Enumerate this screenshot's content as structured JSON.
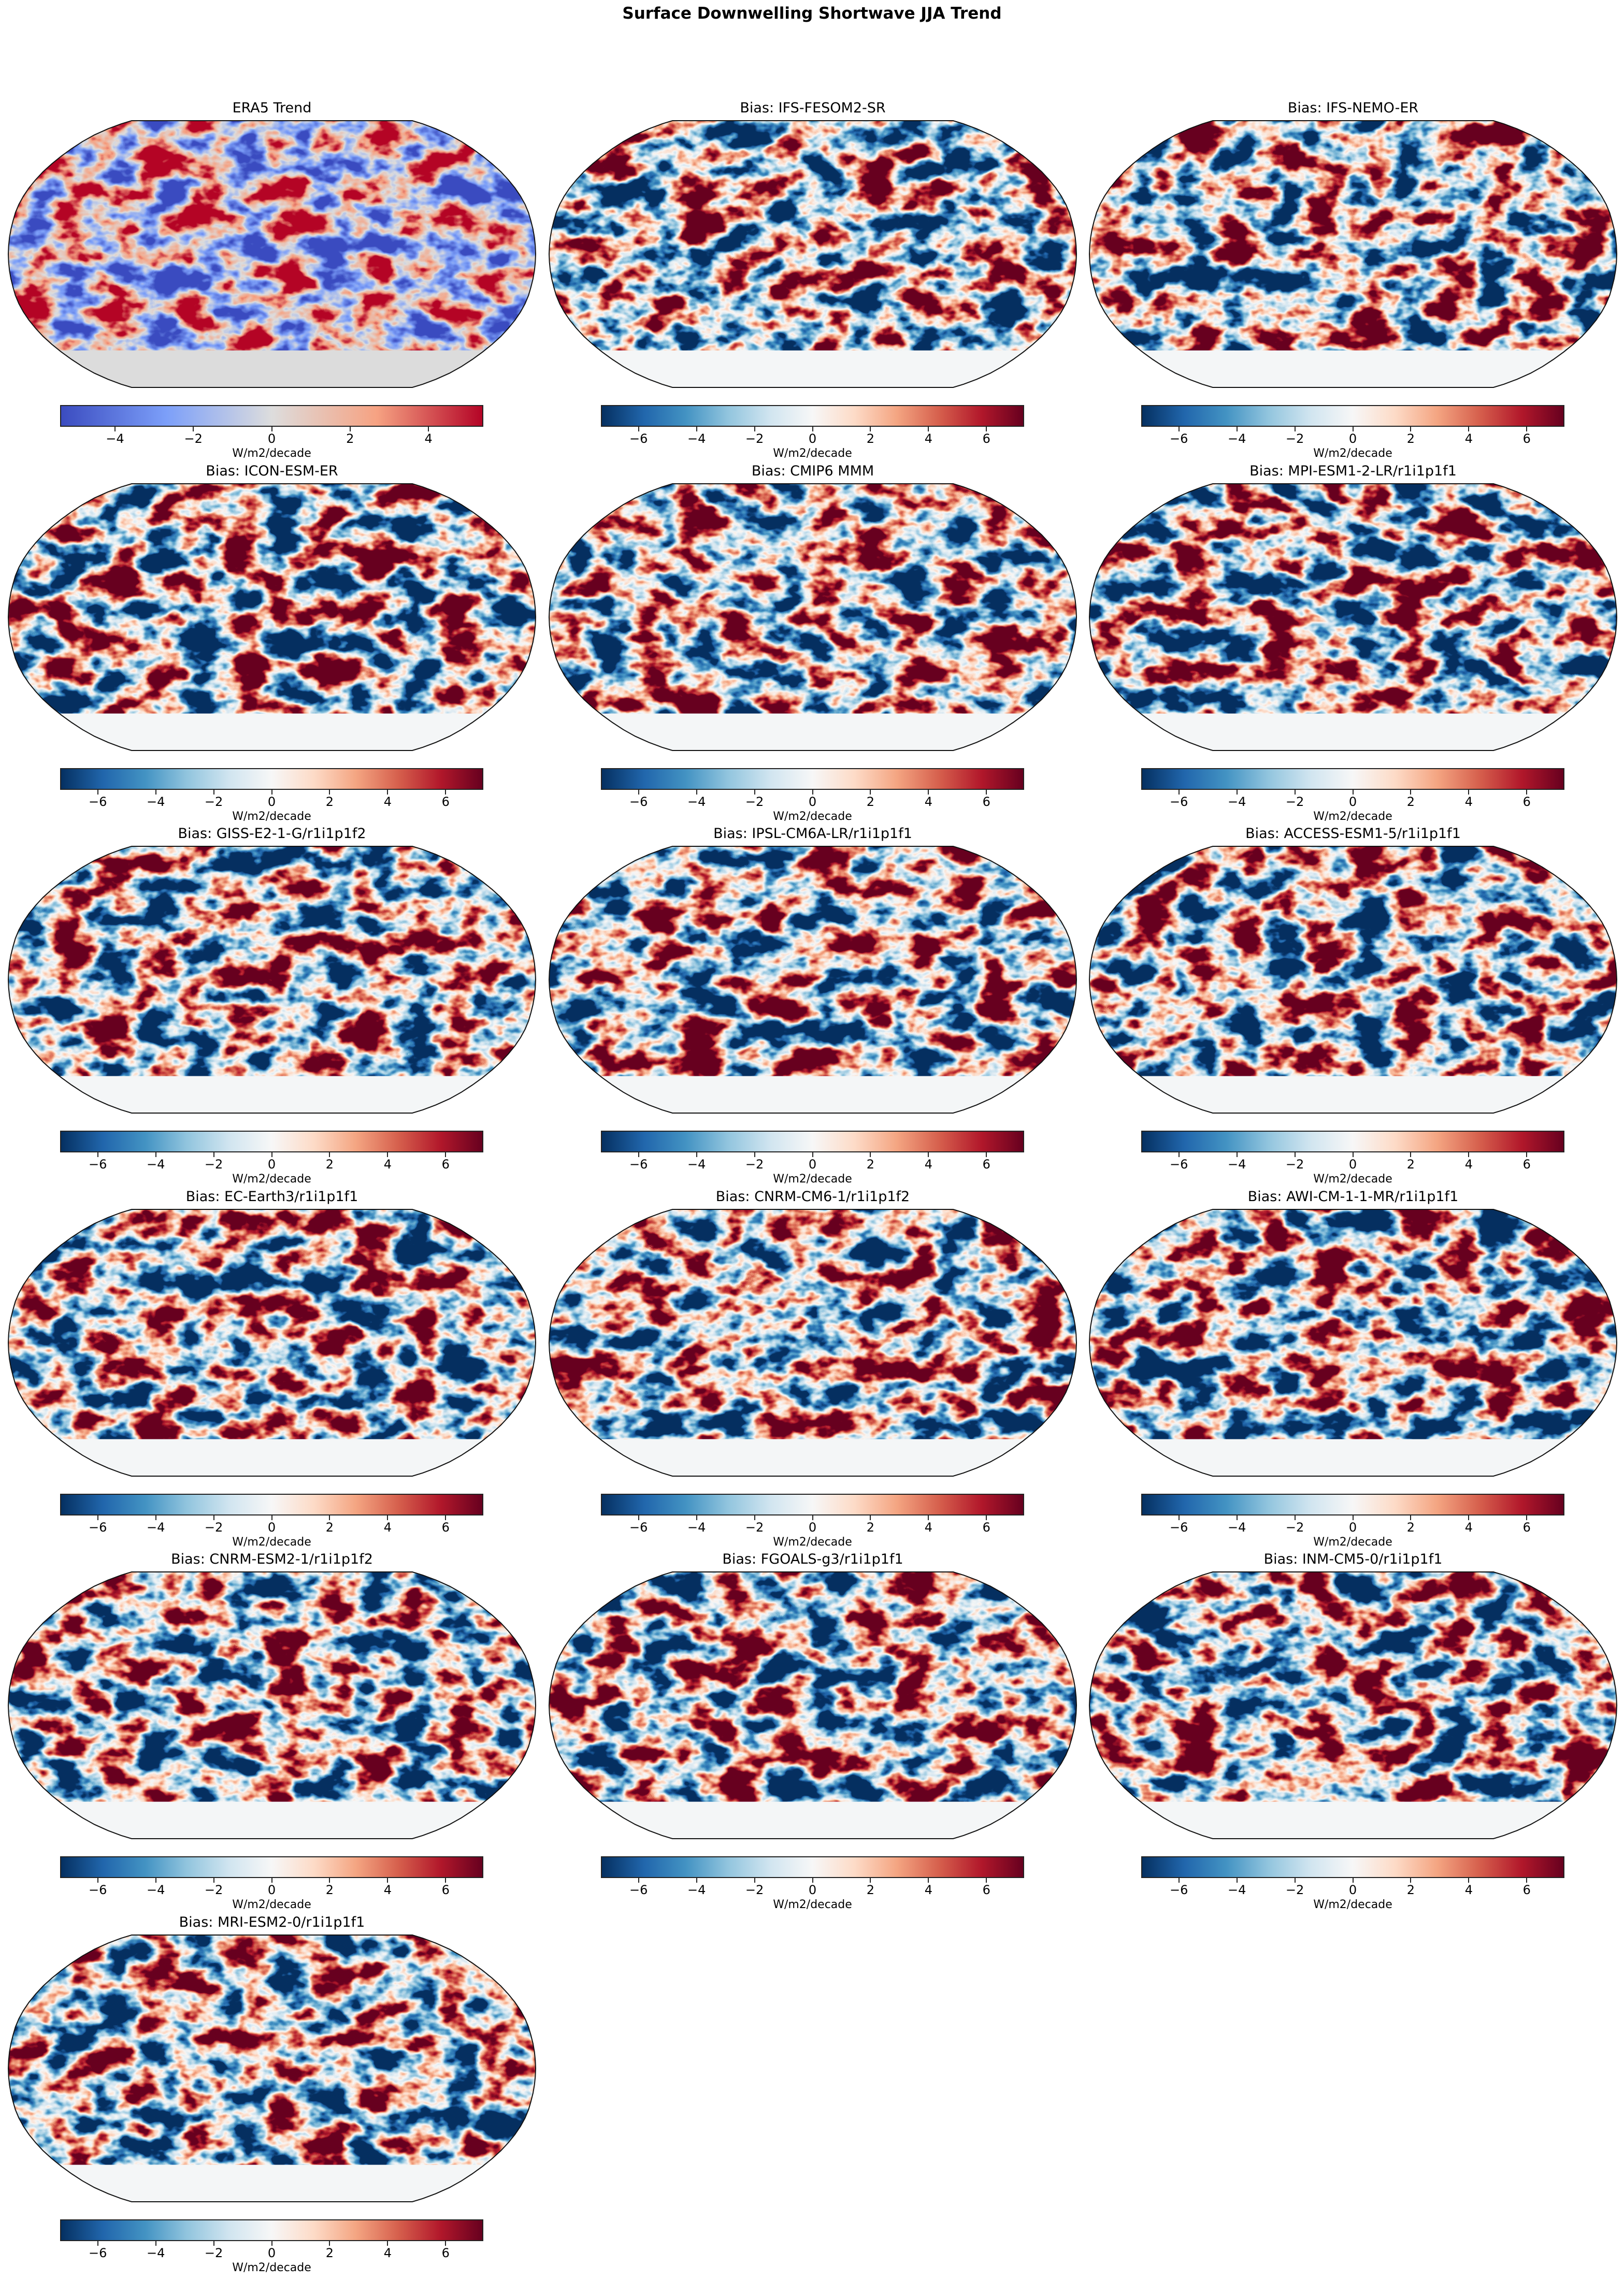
{
  "figure_title": "Surface Downwelling Shortwave JJA Trend",
  "colors": {
    "coolwarm": [
      "#3b4cc0",
      "#7c9ff9",
      "#dddddd",
      "#f6a282",
      "#b40426"
    ],
    "RdBu_r": [
      "#053061",
      "#2166ac",
      "#4393c3",
      "#92c5de",
      "#d1e5f0",
      "#f7f7f7",
      "#fddbc7",
      "#f4a582",
      "#d6604d",
      "#b2182b",
      "#67001f"
    ]
  },
  "chart_data": [
    {
      "type": "heatmap",
      "title": "ERA5 Trend",
      "cmap": "coolwarm",
      "vmin": -5.4,
      "vmax": 5.4,
      "ticks": [
        "−4",
        "−2",
        "0",
        "2",
        "4"
      ],
      "tick_values": [
        -4,
        -2,
        0,
        2,
        4
      ],
      "colorbar_label": "W/m2/decade"
    },
    {
      "type": "heatmap",
      "title": "Bias: IFS-FESOM2-SR",
      "cmap": "RdBu_r",
      "vmin": -7.3,
      "vmax": 7.3,
      "ticks": [
        "−6",
        "−4",
        "−2",
        "0",
        "2",
        "4",
        "6"
      ],
      "tick_values": [
        -6,
        -4,
        -2,
        0,
        2,
        4,
        6
      ],
      "colorbar_label": "W/m2/decade"
    },
    {
      "type": "heatmap",
      "title": "Bias: IFS-NEMO-ER",
      "cmap": "RdBu_r",
      "vmin": -7.3,
      "vmax": 7.3,
      "ticks": [
        "−6",
        "−4",
        "−2",
        "0",
        "2",
        "4",
        "6"
      ],
      "tick_values": [
        -6,
        -4,
        -2,
        0,
        2,
        4,
        6
      ],
      "colorbar_label": "W/m2/decade"
    },
    {
      "type": "heatmap",
      "title": "Bias: ICON-ESM-ER",
      "cmap": "RdBu_r",
      "vmin": -7.3,
      "vmax": 7.3,
      "ticks": [
        "−6",
        "−4",
        "−2",
        "0",
        "2",
        "4",
        "6"
      ],
      "tick_values": [
        -6,
        -4,
        -2,
        0,
        2,
        4,
        6
      ],
      "colorbar_label": "W/m2/decade"
    },
    {
      "type": "heatmap",
      "title": "Bias: CMIP6 MMM",
      "cmap": "RdBu_r",
      "vmin": -7.3,
      "vmax": 7.3,
      "ticks": [
        "−6",
        "−4",
        "−2",
        "0",
        "2",
        "4",
        "6"
      ],
      "tick_values": [
        -6,
        -4,
        -2,
        0,
        2,
        4,
        6
      ],
      "colorbar_label": "W/m2/decade"
    },
    {
      "type": "heatmap",
      "title": "Bias: MPI-ESM1-2-LR/r1i1p1f1",
      "cmap": "RdBu_r",
      "vmin": -7.3,
      "vmax": 7.3,
      "ticks": [
        "−6",
        "−4",
        "−2",
        "0",
        "2",
        "4",
        "6"
      ],
      "tick_values": [
        -6,
        -4,
        -2,
        0,
        2,
        4,
        6
      ],
      "colorbar_label": "W/m2/decade"
    },
    {
      "type": "heatmap",
      "title": "Bias: GISS-E2-1-G/r1i1p1f2",
      "cmap": "RdBu_r",
      "vmin": -7.3,
      "vmax": 7.3,
      "ticks": [
        "−6",
        "−4",
        "−2",
        "0",
        "2",
        "4",
        "6"
      ],
      "tick_values": [
        -6,
        -4,
        -2,
        0,
        2,
        4,
        6
      ],
      "colorbar_label": "W/m2/decade"
    },
    {
      "type": "heatmap",
      "title": "Bias: IPSL-CM6A-LR/r1i1p1f1",
      "cmap": "RdBu_r",
      "vmin": -7.3,
      "vmax": 7.3,
      "ticks": [
        "−6",
        "−4",
        "−2",
        "0",
        "2",
        "4",
        "6"
      ],
      "tick_values": [
        -6,
        -4,
        -2,
        0,
        2,
        4,
        6
      ],
      "colorbar_label": "W/m2/decade"
    },
    {
      "type": "heatmap",
      "title": "Bias: ACCESS-ESM1-5/r1i1p1f1",
      "cmap": "RdBu_r",
      "vmin": -7.3,
      "vmax": 7.3,
      "ticks": [
        "−6",
        "−4",
        "−2",
        "0",
        "2",
        "4",
        "6"
      ],
      "tick_values": [
        -6,
        -4,
        -2,
        0,
        2,
        4,
        6
      ],
      "colorbar_label": "W/m2/decade"
    },
    {
      "type": "heatmap",
      "title": "Bias: EC-Earth3/r1i1p1f1",
      "cmap": "RdBu_r",
      "vmin": -7.3,
      "vmax": 7.3,
      "ticks": [
        "−6",
        "−4",
        "−2",
        "0",
        "2",
        "4",
        "6"
      ],
      "tick_values": [
        -6,
        -4,
        -2,
        0,
        2,
        4,
        6
      ],
      "colorbar_label": "W/m2/decade"
    },
    {
      "type": "heatmap",
      "title": "Bias: CNRM-CM6-1/r1i1p1f2",
      "cmap": "RdBu_r",
      "vmin": -7.3,
      "vmax": 7.3,
      "ticks": [
        "−6",
        "−4",
        "−2",
        "0",
        "2",
        "4",
        "6"
      ],
      "tick_values": [
        -6,
        -4,
        -2,
        0,
        2,
        4,
        6
      ],
      "colorbar_label": "W/m2/decade"
    },
    {
      "type": "heatmap",
      "title": "Bias: AWI-CM-1-1-MR/r1i1p1f1",
      "cmap": "RdBu_r",
      "vmin": -7.3,
      "vmax": 7.3,
      "ticks": [
        "−6",
        "−4",
        "−2",
        "0",
        "2",
        "4",
        "6"
      ],
      "tick_values": [
        -6,
        -4,
        -2,
        0,
        2,
        4,
        6
      ],
      "colorbar_label": "W/m2/decade"
    },
    {
      "type": "heatmap",
      "title": "Bias: CNRM-ESM2-1/r1i1p1f2",
      "cmap": "RdBu_r",
      "vmin": -7.3,
      "vmax": 7.3,
      "ticks": [
        "−6",
        "−4",
        "−2",
        "0",
        "2",
        "4",
        "6"
      ],
      "tick_values": [
        -6,
        -4,
        -2,
        0,
        2,
        4,
        6
      ],
      "colorbar_label": "W/m2/decade"
    },
    {
      "type": "heatmap",
      "title": "Bias: FGOALS-g3/r1i1p1f1",
      "cmap": "RdBu_r",
      "vmin": -7.3,
      "vmax": 7.3,
      "ticks": [
        "−6",
        "−4",
        "−2",
        "0",
        "2",
        "4",
        "6"
      ],
      "tick_values": [
        -6,
        -4,
        -2,
        0,
        2,
        4,
        6
      ],
      "colorbar_label": "W/m2/decade"
    },
    {
      "type": "heatmap",
      "title": "Bias: INM-CM5-0/r1i1p1f1",
      "cmap": "RdBu_r",
      "vmin": -7.3,
      "vmax": 7.3,
      "ticks": [
        "−6",
        "−4",
        "−2",
        "0",
        "2",
        "4",
        "6"
      ],
      "tick_values": [
        -6,
        -4,
        -2,
        0,
        2,
        4,
        6
      ],
      "colorbar_label": "W/m2/decade"
    },
    {
      "type": "heatmap",
      "title": "Bias: MRI-ESM2-0/r1i1p1f1",
      "cmap": "RdBu_r",
      "vmin": -7.3,
      "vmax": 7.3,
      "ticks": [
        "−6",
        "−4",
        "−2",
        "0",
        "2",
        "4",
        "6"
      ],
      "tick_values": [
        -6,
        -4,
        -2,
        0,
        2,
        4,
        6
      ],
      "colorbar_label": "W/m2/decade"
    }
  ]
}
